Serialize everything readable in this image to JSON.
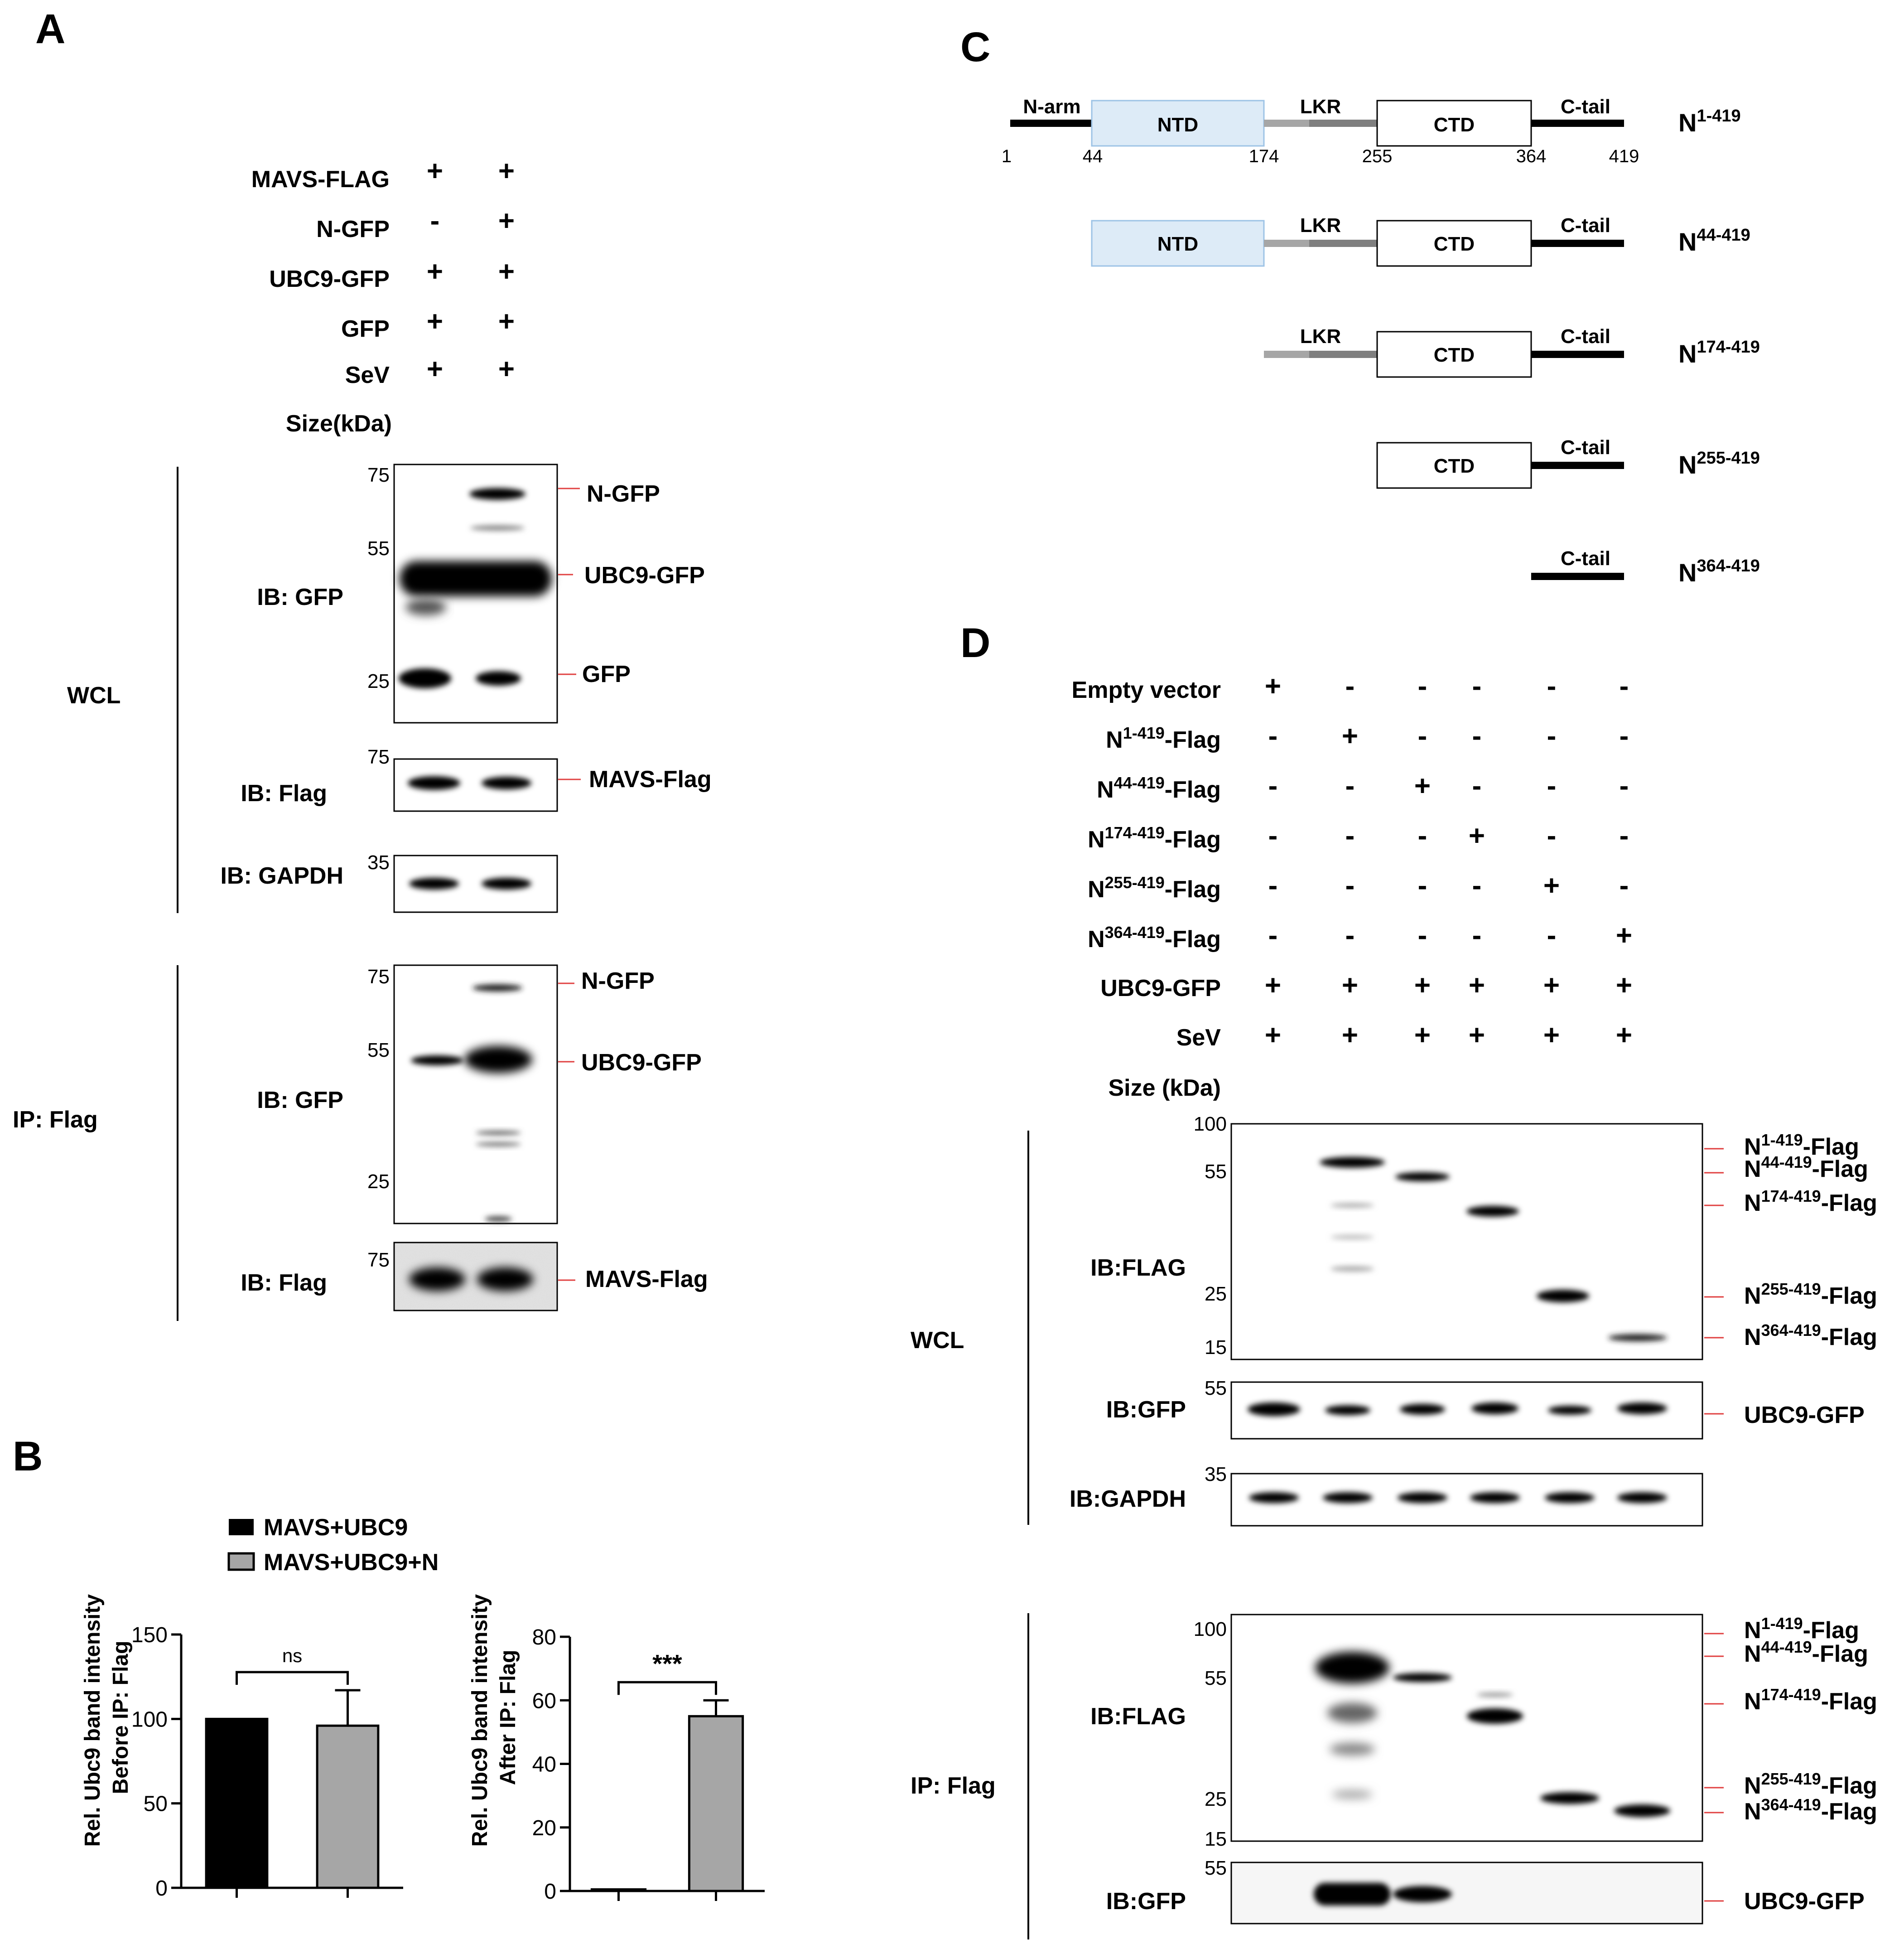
{
  "panelA": {
    "label": "A",
    "rows": [
      {
        "name": "MAVS-FLAG",
        "lanes": [
          "+",
          "+"
        ]
      },
      {
        "name": "N-GFP",
        "lanes": [
          "-",
          "+"
        ]
      },
      {
        "name": "UBC9-GFP",
        "lanes": [
          "+",
          "+"
        ]
      },
      {
        "name": "GFP",
        "lanes": [
          "+",
          "+"
        ]
      },
      {
        "name": "SeV",
        "lanes": [
          "+",
          "+"
        ]
      }
    ],
    "size_label": "Size(kDa)",
    "groups": [
      "WCL",
      "IP: Flag"
    ],
    "ib": [
      "IB: GFP",
      "IB: Flag",
      "IB: GAPDH",
      "IB: GFP",
      "IB: Flag"
    ],
    "mw": [
      "75",
      "55",
      "25",
      "75",
      "35",
      "75",
      "55",
      "25",
      "75"
    ],
    "bands": [
      "N-GFP",
      "UBC9-GFP",
      "GFP",
      "MAVS-Flag",
      "N-GFP",
      "UBC9-GFP",
      "MAVS-Flag"
    ]
  },
  "panelB": {
    "label": "B",
    "legend": [
      "MAVS+UBC9",
      "MAVS+UBC9+N"
    ],
    "colors": {
      "bar1": "#000000",
      "bar2": "#a6a6a6"
    },
    "sig": [
      "ns",
      "***"
    ]
  },
  "chart_data": [
    {
      "type": "bar",
      "categories": [
        "MAVS+UBC9",
        "MAVS+UBC9+N"
      ],
      "values": [
        100,
        96
      ],
      "error": [
        0,
        21
      ],
      "ylabel": "Rel. Ubc9 band intensity Before IP: Flag",
      "ylim": [
        0,
        150
      ],
      "yticks": [
        "0",
        "50",
        "100",
        "150"
      ],
      "annotation": "ns"
    },
    {
      "type": "bar",
      "categories": [
        "MAVS+UBC9",
        "MAVS+UBC9+N"
      ],
      "values": [
        0.5,
        55
      ],
      "error": [
        0,
        5
      ],
      "ylabel": "Rel. Ubc9 band intensity After IP: Flag",
      "ylim": [
        0,
        80
      ],
      "yticks": [
        "0",
        "20",
        "40",
        "60",
        "80"
      ],
      "annotation": "***"
    }
  ],
  "panelC": {
    "label": "C",
    "domains": [
      "N-arm",
      "NTD",
      "LKR",
      "CTD",
      "C-tail"
    ],
    "positions": [
      "1",
      "44",
      "174",
      "255",
      "364",
      "419"
    ],
    "constructs": [
      {
        "base": "N",
        "sup": "1-419"
      },
      {
        "base": "N",
        "sup": "44-419"
      },
      {
        "base": "N",
        "sup": "174-419"
      },
      {
        "base": "N",
        "sup": "255-419"
      },
      {
        "base": "N",
        "sup": "364-419"
      }
    ]
  },
  "panelD": {
    "label": "D",
    "rows": [
      {
        "name": "Empty vector",
        "lanes": [
          "+",
          "-",
          "-",
          "-",
          "-",
          "-"
        ]
      },
      {
        "base": "N",
        "sup": "1-419",
        "suffix": "-Flag",
        "lanes": [
          "-",
          "+",
          "-",
          "-",
          "-",
          "-"
        ]
      },
      {
        "base": "N",
        "sup": "44-419",
        "suffix": "-Flag",
        "lanes": [
          "-",
          "-",
          "+",
          "-",
          "-",
          "-"
        ]
      },
      {
        "base": "N",
        "sup": "174-419",
        "suffix": "-Flag",
        "lanes": [
          "-",
          "-",
          "-",
          "+",
          "-",
          "-"
        ]
      },
      {
        "base": "N",
        "sup": "255-419",
        "suffix": "-Flag",
        "lanes": [
          "-",
          "-",
          "-",
          "-",
          "+",
          "-"
        ]
      },
      {
        "base": "N",
        "sup": "364-419",
        "suffix": "-Flag",
        "lanes": [
          "-",
          "-",
          "-",
          "-",
          "-",
          "+"
        ]
      },
      {
        "name": "UBC9-GFP",
        "lanes": [
          "+",
          "+",
          "+",
          "+",
          "+",
          "+"
        ]
      },
      {
        "name": "SeV",
        "lanes": [
          "+",
          "+",
          "+",
          "+",
          "+",
          "+"
        ]
      }
    ],
    "size_label": "Size (kDa)",
    "groups": [
      "WCL",
      "IP: Flag"
    ],
    "ib": [
      "IB:FLAG",
      "IB:GFP",
      "IB:GAPDH",
      "IB:FLAG",
      "IB:GFP"
    ],
    "mw": [
      "100",
      "55",
      "25",
      "15",
      "55",
      "35",
      "100",
      "55",
      "25",
      "15",
      "55"
    ],
    "flag_bands": [
      {
        "base": "N",
        "sup": "1-419",
        "suffix": "-Flag"
      },
      {
        "base": "N",
        "sup": "44-419",
        "suffix": "-Flag"
      },
      {
        "base": "N",
        "sup": "174-419",
        "suffix": "-Flag"
      },
      {
        "base": "N",
        "sup": "255-419",
        "suffix": "-Flag"
      },
      {
        "base": "N",
        "sup": "364-419",
        "suffix": "-Flag"
      }
    ],
    "gfp_band": "UBC9-GFP"
  }
}
